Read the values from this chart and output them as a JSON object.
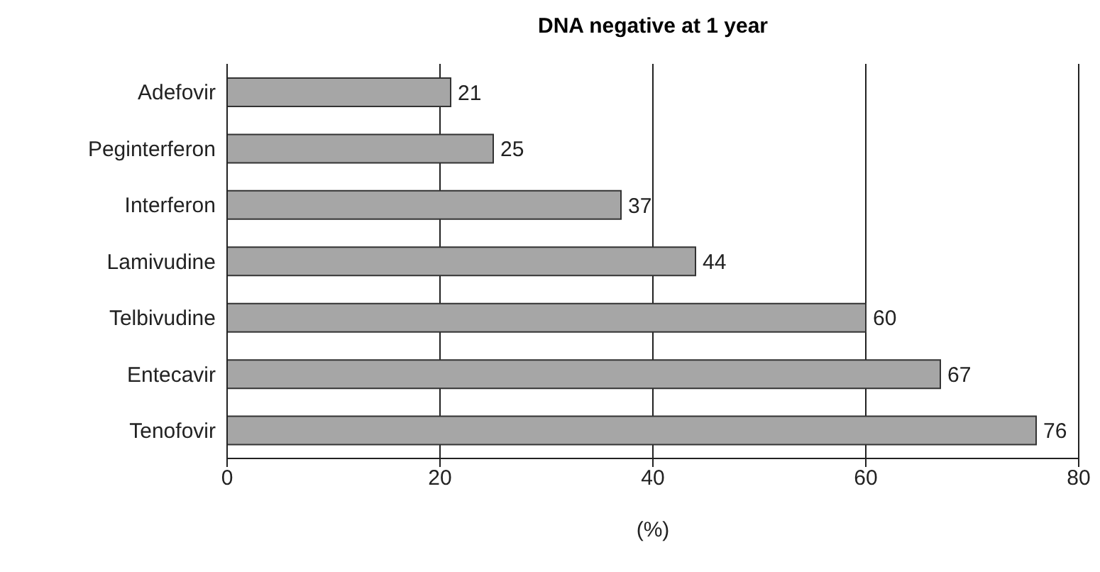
{
  "chart_data": {
    "type": "bar",
    "orientation": "horizontal",
    "title": "DNA negative at 1 year",
    "xlabel": "(%)",
    "categories": [
      "Adefovir",
      "Peginterferon",
      "Interferon",
      "Lamivudine",
      "Telbivudine",
      "Entecavir",
      "Tenofovir"
    ],
    "values": [
      21,
      25,
      37,
      44,
      60,
      67,
      76
    ],
    "color": "#a6a6a6",
    "xlim": [
      0,
      80
    ],
    "xticks": [
      0,
      20,
      40,
      60,
      80
    ],
    "grid": "x",
    "data_labels": true
  }
}
